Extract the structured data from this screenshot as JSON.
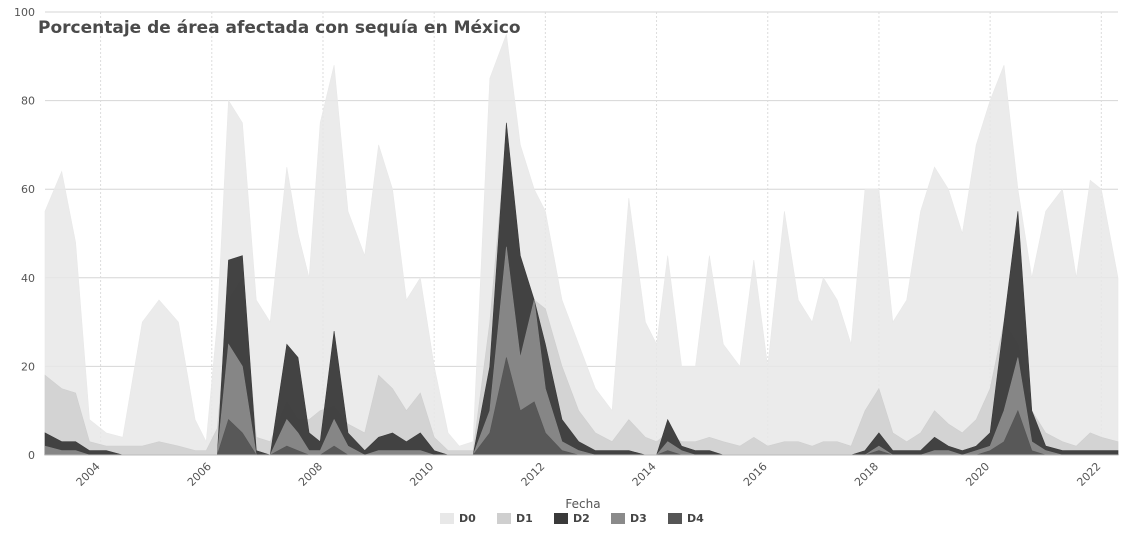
{
  "chart_data": {
    "type": "area",
    "title": "Porcentaje de área afectada con sequía en México",
    "xlabel": "Fecha",
    "ylabel": "",
    "ylim": [
      0,
      100
    ],
    "xlim": [
      2003.0,
      2022.3
    ],
    "yticks": [
      0,
      20,
      40,
      60,
      80,
      100
    ],
    "xticks": [
      2004,
      2006,
      2008,
      2010,
      2012,
      2014,
      2016,
      2018,
      2020,
      2022
    ],
    "grid": true,
    "legend_position": "bottom",
    "colors": {
      "D0": "#e8e8e8",
      "D1": "#cfcfcf",
      "D2": "#3a3a3a",
      "D3": "#8a8a8a",
      "D4": "#555555"
    },
    "series": [
      {
        "name": "D0",
        "x": [
          2003.0,
          2003.3,
          2003.55,
          2003.8,
          2004.1,
          2004.4,
          2004.75,
          2005.05,
          2005.4,
          2005.7,
          2005.9,
          2006.1,
          2006.3,
          2006.55,
          2006.8,
          2007.05,
          2007.35,
          2007.55,
          2007.75,
          2007.95,
          2008.2,
          2008.45,
          2008.75,
          2009.0,
          2009.25,
          2009.5,
          2009.75,
          2010.0,
          2010.25,
          2010.45,
          2010.7,
          2011.0,
          2011.3,
          2011.55,
          2011.8,
          2012.0,
          2012.3,
          2012.6,
          2012.9,
          2013.2,
          2013.5,
          2013.8,
          2014.0,
          2014.2,
          2014.45,
          2014.7,
          2014.95,
          2015.2,
          2015.5,
          2015.75,
          2016.0,
          2016.3,
          2016.55,
          2016.8,
          2017.0,
          2017.25,
          2017.5,
          2017.75,
          2018.0,
          2018.25,
          2018.5,
          2018.75,
          2019.0,
          2019.25,
          2019.5,
          2019.75,
          2020.0,
          2020.25,
          2020.5,
          2020.75,
          2021.0,
          2021.3,
          2021.55,
          2021.8,
          2022.0,
          2022.3
        ],
        "values": [
          55,
          64,
          48,
          8,
          5,
          4,
          30,
          35,
          30,
          8,
          3,
          30,
          80,
          75,
          35,
          30,
          65,
          50,
          40,
          75,
          88,
          55,
          45,
          70,
          60,
          35,
          40,
          20,
          5,
          2,
          3,
          85,
          95,
          70,
          60,
          55,
          35,
          25,
          15,
          10,
          58,
          30,
          25,
          45,
          20,
          20,
          45,
          25,
          20,
          44,
          20,
          55,
          35,
          30,
          40,
          35,
          25,
          60,
          60,
          30,
          35,
          55,
          65,
          60,
          50,
          70,
          80,
          88,
          60,
          40,
          55,
          60,
          40,
          62,
          60,
          40
        ]
      },
      {
        "name": "D1",
        "x": [
          2003.0,
          2003.3,
          2003.55,
          2003.8,
          2004.1,
          2004.4,
          2004.75,
          2005.05,
          2005.4,
          2005.7,
          2005.9,
          2006.1,
          2006.3,
          2006.55,
          2006.8,
          2007.05,
          2007.35,
          2007.55,
          2007.75,
          2007.95,
          2008.2,
          2008.45,
          2008.75,
          2009.0,
          2009.25,
          2009.5,
          2009.75,
          2010.0,
          2010.25,
          2010.45,
          2010.7,
          2011.0,
          2011.3,
          2011.55,
          2011.8,
          2012.0,
          2012.3,
          2012.6,
          2012.9,
          2013.2,
          2013.5,
          2013.8,
          2014.0,
          2014.2,
          2014.45,
          2014.7,
          2014.95,
          2015.2,
          2015.5,
          2015.75,
          2016.0,
          2016.3,
          2016.55,
          2016.8,
          2017.0,
          2017.25,
          2017.5,
          2017.75,
          2018.0,
          2018.25,
          2018.5,
          2018.75,
          2019.0,
          2019.25,
          2019.5,
          2019.75,
          2020.0,
          2020.25,
          2020.5,
          2020.75,
          2021.0,
          2021.3,
          2021.55,
          2021.8,
          2022.0,
          2022.3
        ],
        "values": [
          18,
          15,
          14,
          3,
          2,
          2,
          2,
          3,
          2,
          1,
          1,
          6,
          35,
          40,
          4,
          3,
          12,
          8,
          8,
          10,
          11,
          7,
          5,
          18,
          15,
          10,
          14,
          4,
          1,
          1,
          1,
          30,
          72,
          45,
          35,
          33,
          20,
          10,
          5,
          3,
          8,
          4,
          3,
          5,
          3,
          3,
          4,
          3,
          2,
          4,
          2,
          3,
          3,
          2,
          3,
          3,
          2,
          10,
          15,
          5,
          3,
          5,
          10,
          7,
          5,
          8,
          15,
          30,
          25,
          10,
          5,
          3,
          2,
          5,
          4,
          3
        ]
      },
      {
        "name": "D2",
        "x": [
          2003.0,
          2003.3,
          2003.55,
          2003.8,
          2004.1,
          2004.4,
          2004.75,
          2005.05,
          2005.4,
          2005.7,
          2005.9,
          2006.1,
          2006.3,
          2006.55,
          2006.8,
          2007.05,
          2007.35,
          2007.55,
          2007.75,
          2007.95,
          2008.2,
          2008.45,
          2008.75,
          2009.0,
          2009.25,
          2009.5,
          2009.75,
          2010.0,
          2010.25,
          2010.45,
          2010.7,
          2011.0,
          2011.3,
          2011.55,
          2011.8,
          2012.0,
          2012.3,
          2012.6,
          2012.9,
          2013.2,
          2013.5,
          2013.8,
          2014.0,
          2014.2,
          2014.45,
          2014.7,
          2014.95,
          2015.2,
          2015.5,
          2015.75,
          2016.0,
          2016.3,
          2016.55,
          2016.8,
          2017.0,
          2017.25,
          2017.5,
          2017.75,
          2018.0,
          2018.25,
          2018.5,
          2018.75,
          2019.0,
          2019.25,
          2019.5,
          2019.75,
          2020.0,
          2020.25,
          2020.5,
          2020.75,
          2021.0,
          2021.3,
          2021.55,
          2021.8,
          2022.0,
          2022.3
        ],
        "values": [
          5,
          3,
          3,
          1,
          1,
          0,
          0,
          0,
          0,
          0,
          0,
          0,
          44,
          45,
          1,
          0,
          25,
          22,
          5,
          3,
          28,
          5,
          1,
          4,
          5,
          3,
          5,
          1,
          0,
          0,
          0,
          20,
          75,
          45,
          35,
          25,
          8,
          3,
          1,
          1,
          1,
          0,
          0,
          8,
          2,
          1,
          1,
          0,
          0,
          0,
          0,
          0,
          0,
          0,
          0,
          0,
          0,
          1,
          5,
          1,
          1,
          1,
          4,
          2,
          1,
          2,
          5,
          30,
          55,
          10,
          2,
          1,
          1,
          1,
          1,
          1
        ]
      },
      {
        "name": "D3",
        "x": [
          2003.0,
          2003.3,
          2003.55,
          2003.8,
          2004.1,
          2004.4,
          2004.75,
          2005.05,
          2005.4,
          2005.7,
          2005.9,
          2006.1,
          2006.3,
          2006.55,
          2006.8,
          2007.05,
          2007.35,
          2007.55,
          2007.75,
          2007.95,
          2008.2,
          2008.45,
          2008.75,
          2009.0,
          2009.25,
          2009.5,
          2009.75,
          2010.0,
          2010.25,
          2010.45,
          2010.7,
          2011.0,
          2011.3,
          2011.55,
          2011.8,
          2012.0,
          2012.3,
          2012.6,
          2012.9,
          2013.2,
          2013.5,
          2013.8,
          2014.0,
          2014.2,
          2014.45,
          2014.7,
          2014.95,
          2015.2,
          2015.5,
          2015.75,
          2016.0,
          2016.3,
          2016.55,
          2016.8,
          2017.0,
          2017.25,
          2017.5,
          2017.75,
          2018.0,
          2018.25,
          2018.5,
          2018.75,
          2019.0,
          2019.25,
          2019.5,
          2019.75,
          2020.0,
          2020.25,
          2020.5,
          2020.75,
          2021.0,
          2021.3,
          2021.55,
          2021.8,
          2022.0,
          2022.3
        ],
        "values": [
          2,
          1,
          1,
          0,
          0,
          0,
          0,
          0,
          0,
          0,
          0,
          0,
          25,
          20,
          0,
          0,
          8,
          5,
          1,
          1,
          8,
          2,
          0,
          1,
          1,
          1,
          1,
          0,
          0,
          0,
          0,
          10,
          47,
          22,
          35,
          15,
          3,
          1,
          0,
          0,
          0,
          0,
          0,
          3,
          1,
          0,
          0,
          0,
          0,
          0,
          0,
          0,
          0,
          0,
          0,
          0,
          0,
          0,
          2,
          0,
          0,
          0,
          1,
          1,
          0,
          1,
          2,
          10,
          22,
          3,
          1,
          0,
          0,
          0,
          0,
          0
        ]
      },
      {
        "name": "D4",
        "x": [
          2003.0,
          2003.3,
          2003.55,
          2003.8,
          2004.1,
          2004.4,
          2004.75,
          2005.05,
          2005.4,
          2005.7,
          2005.9,
          2006.1,
          2006.3,
          2006.55,
          2006.8,
          2007.05,
          2007.35,
          2007.55,
          2007.75,
          2007.95,
          2008.2,
          2008.45,
          2008.75,
          2009.0,
          2009.25,
          2009.5,
          2009.75,
          2010.0,
          2010.25,
          2010.45,
          2010.7,
          2011.0,
          2011.3,
          2011.55,
          2011.8,
          2012.0,
          2012.3,
          2012.6,
          2012.9,
          2013.2,
          2013.5,
          2013.8,
          2014.0,
          2014.2,
          2014.45,
          2014.7,
          2014.95,
          2015.2,
          2015.5,
          2015.75,
          2016.0,
          2016.3,
          2016.55,
          2016.8,
          2017.0,
          2017.25,
          2017.5,
          2017.75,
          2018.0,
          2018.25,
          2018.5,
          2018.75,
          2019.0,
          2019.25,
          2019.5,
          2019.75,
          2020.0,
          2020.25,
          2020.5,
          2020.75,
          2021.0,
          2021.3,
          2021.55,
          2021.8,
          2022.0,
          2022.3
        ],
        "values": [
          0,
          0,
          0,
          0,
          0,
          0,
          0,
          0,
          0,
          0,
          0,
          0,
          8,
          5,
          0,
          0,
          2,
          1,
          0,
          0,
          2,
          0,
          0,
          0,
          0,
          0,
          0,
          0,
          0,
          0,
          0,
          5,
          22,
          10,
          12,
          5,
          1,
          0,
          0,
          0,
          0,
          0,
          0,
          1,
          0,
          0,
          0,
          0,
          0,
          0,
          0,
          0,
          0,
          0,
          0,
          0,
          0,
          0,
          1,
          0,
          0,
          0,
          0,
          0,
          0,
          0,
          1,
          3,
          10,
          1,
          0,
          0,
          0,
          0,
          0,
          0
        ]
      }
    ]
  }
}
